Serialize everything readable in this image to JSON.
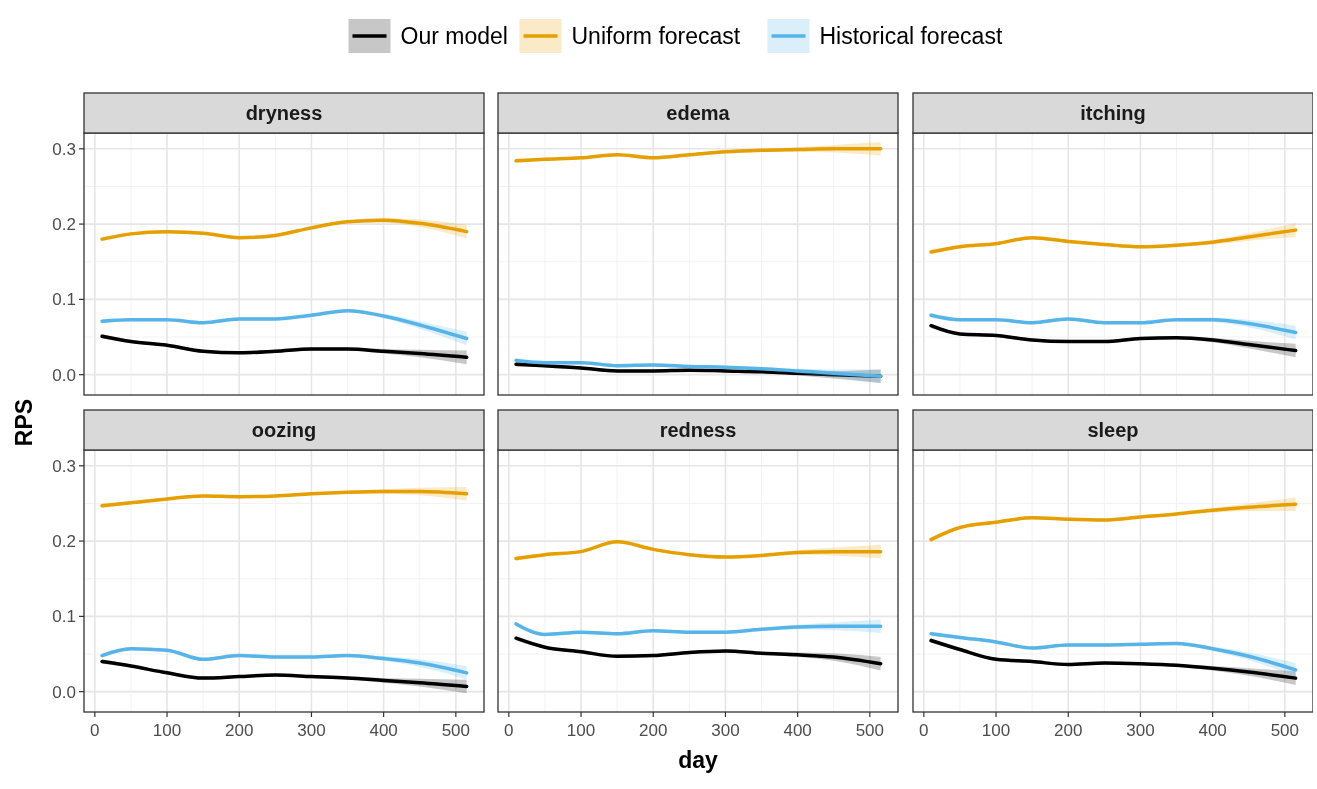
{
  "chart_data": [
    {
      "type": "line",
      "title": "dryness",
      "ylabel": "RPS",
      "legend": "top",
      "grid": true,
      "tick_labels": "y",
      "line_style": "solid",
      "x": [
        10,
        50,
        100,
        150,
        200,
        250,
        300,
        350,
        400,
        450,
        515
      ],
      "xlim": [
        -15,
        539
      ],
      "xticks": [
        0,
        100,
        200,
        300,
        400,
        500
      ],
      "ylim": [
        -0.027,
        0.321
      ],
      "yticks": [
        {
          "value": 0,
          "label": "0.0"
        },
        0.1,
        0.2,
        0.3
      ],
      "series": [
        {
          "name": "Our model",
          "color": "#000000",
          "values": [
            0.051,
            0.044,
            0.039,
            0.031,
            0.029,
            0.031,
            0.034,
            0.034,
            0.031,
            0.028,
            0.023
          ],
          "lower": [
            0.048,
            0.042,
            0.037,
            0.029,
            0.027,
            0.029,
            0.032,
            0.032,
            0.028,
            0.023,
            0.014
          ],
          "upper": [
            0.054,
            0.046,
            0.041,
            0.033,
            0.031,
            0.033,
            0.036,
            0.036,
            0.034,
            0.033,
            0.032
          ]
        },
        {
          "name": "Uniform forecast",
          "color": "#e69f00",
          "values": [
            0.18,
            0.187,
            0.19,
            0.188,
            0.182,
            0.185,
            0.195,
            0.203,
            0.205,
            0.201,
            0.19
          ],
          "lower": [
            0.177,
            0.185,
            0.188,
            0.186,
            0.18,
            0.183,
            0.193,
            0.201,
            0.202,
            0.196,
            0.181
          ],
          "upper": [
            0.183,
            0.189,
            0.192,
            0.19,
            0.184,
            0.187,
            0.197,
            0.205,
            0.208,
            0.206,
            0.199
          ]
        },
        {
          "name": "Historical forecast",
          "color": "#56b4e9",
          "values": [
            0.071,
            0.073,
            0.073,
            0.069,
            0.074,
            0.074,
            0.079,
            0.085,
            0.078,
            0.066,
            0.048
          ],
          "lower": [
            0.068,
            0.071,
            0.071,
            0.067,
            0.072,
            0.072,
            0.077,
            0.083,
            0.075,
            0.061,
            0.039
          ],
          "upper": [
            0.074,
            0.075,
            0.075,
            0.071,
            0.076,
            0.076,
            0.081,
            0.087,
            0.081,
            0.071,
            0.057
          ]
        }
      ]
    },
    {
      "type": "line",
      "title": "edema",
      "grid": true,
      "tick_labels": false,
      "line_style": "solid",
      "x": [
        10,
        50,
        100,
        150,
        200,
        250,
        300,
        350,
        400,
        450,
        515
      ],
      "xlim": [
        -15,
        539
      ],
      "xticks": [
        0,
        100,
        200,
        300,
        400,
        500
      ],
      "ylim": [
        -0.027,
        0.321
      ],
      "yticks": [
        0,
        0.1,
        0.2,
        0.3
      ],
      "series": [
        {
          "color": "#000000",
          "values": [
            0.014,
            0.012,
            0.009,
            0.005,
            0.005,
            0.006,
            0.005,
            0.004,
            0.002,
            0.0,
            -0.002
          ],
          "lower": [
            0.011,
            0.01,
            0.007,
            0.003,
            0.003,
            0.004,
            0.003,
            0.002,
            -0.001,
            -0.005,
            -0.011
          ],
          "upper": [
            0.017,
            0.014,
            0.011,
            0.007,
            0.007,
            0.008,
            0.007,
            0.006,
            0.005,
            0.005,
            0.007
          ]
        },
        {
          "color": "#e69f00",
          "values": [
            0.284,
            0.286,
            0.288,
            0.292,
            0.288,
            0.292,
            0.296,
            0.298,
            0.299,
            0.3,
            0.3
          ],
          "lower": [
            0.281,
            0.284,
            0.286,
            0.29,
            0.286,
            0.29,
            0.294,
            0.296,
            0.296,
            0.295,
            0.291
          ],
          "upper": [
            0.287,
            0.288,
            0.29,
            0.294,
            0.29,
            0.294,
            0.298,
            0.3,
            0.302,
            0.305,
            0.309
          ]
        },
        {
          "color": "#56b4e9",
          "values": [
            0.019,
            0.016,
            0.016,
            0.012,
            0.013,
            0.011,
            0.01,
            0.008,
            0.005,
            0.002,
            -0.002
          ],
          "lower": [
            0.016,
            0.014,
            0.014,
            0.01,
            0.011,
            0.009,
            0.008,
            0.006,
            0.002,
            -0.003,
            -0.011
          ],
          "upper": [
            0.022,
            0.018,
            0.018,
            0.014,
            0.015,
            0.013,
            0.012,
            0.01,
            0.008,
            0.007,
            0.007
          ]
        }
      ]
    },
    {
      "type": "line",
      "title": "itching",
      "grid": true,
      "tick_labels": false,
      "line_style": "solid",
      "x": [
        10,
        50,
        100,
        150,
        200,
        250,
        300,
        350,
        400,
        450,
        515
      ],
      "xlim": [
        -15,
        539
      ],
      "xticks": [
        0,
        100,
        200,
        300,
        400,
        500
      ],
      "ylim": [
        -0.027,
        0.321
      ],
      "yticks": [
        0,
        0.1,
        0.2,
        0.3
      ],
      "series": [
        {
          "color": "#000000",
          "values": [
            0.065,
            0.054,
            0.052,
            0.046,
            0.044,
            0.044,
            0.048,
            0.049,
            0.046,
            0.04,
            0.032
          ],
          "lower": [
            0.062,
            0.052,
            0.05,
            0.044,
            0.042,
            0.042,
            0.046,
            0.047,
            0.043,
            0.035,
            0.023
          ],
          "upper": [
            0.068,
            0.056,
            0.054,
            0.048,
            0.046,
            0.046,
            0.05,
            0.051,
            0.049,
            0.045,
            0.041
          ]
        },
        {
          "color": "#e69f00",
          "values": [
            0.163,
            0.17,
            0.174,
            0.182,
            0.177,
            0.173,
            0.17,
            0.172,
            0.176,
            0.183,
            0.192
          ],
          "lower": [
            0.16,
            0.168,
            0.172,
            0.18,
            0.175,
            0.171,
            0.168,
            0.17,
            0.173,
            0.178,
            0.183
          ],
          "upper": [
            0.166,
            0.172,
            0.176,
            0.184,
            0.179,
            0.175,
            0.172,
            0.174,
            0.179,
            0.188,
            0.201
          ]
        },
        {
          "color": "#56b4e9",
          "values": [
            0.079,
            0.073,
            0.073,
            0.069,
            0.074,
            0.069,
            0.069,
            0.073,
            0.073,
            0.068,
            0.056
          ],
          "lower": [
            0.076,
            0.071,
            0.071,
            0.067,
            0.072,
            0.067,
            0.067,
            0.071,
            0.07,
            0.063,
            0.047
          ],
          "upper": [
            0.082,
            0.075,
            0.075,
            0.071,
            0.076,
            0.071,
            0.071,
            0.075,
            0.076,
            0.073,
            0.065
          ]
        }
      ]
    },
    {
      "type": "line",
      "title": "oozing",
      "grid": true,
      "line_style": "solid",
      "x": [
        10,
        50,
        100,
        150,
        200,
        250,
        300,
        350,
        400,
        450,
        515
      ],
      "xlim": [
        -15,
        539
      ],
      "xticks": [
        0,
        100,
        200,
        300,
        400,
        500
      ],
      "ylim": [
        -0.027,
        0.321
      ],
      "yticks": [
        {
          "value": 0,
          "label": "0.0"
        },
        0.1,
        0.2,
        0.3
      ],
      "series": [
        {
          "color": "#000000",
          "values": [
            0.04,
            0.034,
            0.025,
            0.018,
            0.02,
            0.022,
            0.02,
            0.018,
            0.015,
            0.012,
            0.007
          ],
          "lower": [
            0.037,
            0.032,
            0.023,
            0.016,
            0.018,
            0.02,
            0.018,
            0.016,
            0.012,
            0.007,
            -0.002
          ],
          "upper": [
            0.043,
            0.036,
            0.027,
            0.02,
            0.022,
            0.024,
            0.022,
            0.02,
            0.018,
            0.017,
            0.016
          ]
        },
        {
          "color": "#e69f00",
          "values": [
            0.247,
            0.251,
            0.256,
            0.26,
            0.259,
            0.26,
            0.263,
            0.265,
            0.266,
            0.266,
            0.263
          ],
          "lower": [
            0.244,
            0.249,
            0.254,
            0.258,
            0.257,
            0.258,
            0.261,
            0.263,
            0.263,
            0.261,
            0.254
          ],
          "upper": [
            0.25,
            0.253,
            0.258,
            0.262,
            0.261,
            0.262,
            0.265,
            0.267,
            0.269,
            0.271,
            0.272
          ]
        },
        {
          "color": "#56b4e9",
          "values": [
            0.048,
            0.057,
            0.055,
            0.043,
            0.048,
            0.046,
            0.046,
            0.048,
            0.044,
            0.038,
            0.025
          ],
          "lower": [
            0.045,
            0.055,
            0.053,
            0.041,
            0.046,
            0.044,
            0.044,
            0.046,
            0.041,
            0.033,
            0.016
          ],
          "upper": [
            0.051,
            0.059,
            0.057,
            0.045,
            0.05,
            0.048,
            0.048,
            0.05,
            0.047,
            0.043,
            0.034
          ]
        }
      ]
    },
    {
      "type": "line",
      "title": "redness",
      "xlabel": "day",
      "grid": true,
      "tick_labels": "x",
      "line_style": "solid",
      "x": [
        10,
        50,
        100,
        150,
        200,
        250,
        300,
        350,
        400,
        450,
        515
      ],
      "xlim": [
        -15,
        539
      ],
      "xticks": [
        0,
        100,
        200,
        300,
        400,
        500
      ],
      "ylim": [
        -0.027,
        0.321
      ],
      "yticks": [
        0,
        0.1,
        0.2,
        0.3
      ],
      "series": [
        {
          "color": "#000000",
          "values": [
            0.071,
            0.059,
            0.053,
            0.047,
            0.048,
            0.052,
            0.054,
            0.051,
            0.049,
            0.046,
            0.037
          ],
          "lower": [
            0.068,
            0.057,
            0.051,
            0.045,
            0.046,
            0.05,
            0.052,
            0.049,
            0.046,
            0.041,
            0.028
          ],
          "upper": [
            0.074,
            0.061,
            0.055,
            0.049,
            0.05,
            0.054,
            0.056,
            0.053,
            0.052,
            0.051,
            0.046
          ]
        },
        {
          "color": "#e69f00",
          "values": [
            0.177,
            0.182,
            0.186,
            0.199,
            0.189,
            0.182,
            0.179,
            0.181,
            0.185,
            0.186,
            0.186
          ],
          "lower": [
            0.174,
            0.18,
            0.184,
            0.197,
            0.187,
            0.18,
            0.177,
            0.179,
            0.182,
            0.181,
            0.177
          ],
          "upper": [
            0.18,
            0.184,
            0.188,
            0.201,
            0.191,
            0.184,
            0.181,
            0.183,
            0.188,
            0.191,
            0.195
          ]
        },
        {
          "color": "#56b4e9",
          "values": [
            0.09,
            0.076,
            0.079,
            0.077,
            0.081,
            0.079,
            0.079,
            0.083,
            0.086,
            0.087,
            0.087
          ],
          "lower": [
            0.087,
            0.074,
            0.077,
            0.075,
            0.079,
            0.077,
            0.077,
            0.081,
            0.083,
            0.082,
            0.078
          ],
          "upper": [
            0.093,
            0.078,
            0.081,
            0.079,
            0.083,
            0.081,
            0.081,
            0.085,
            0.089,
            0.092,
            0.096
          ]
        }
      ]
    },
    {
      "type": "line",
      "title": "sleep",
      "grid": true,
      "tick_labels": "x",
      "line_style": "solid",
      "x": [
        10,
        50,
        100,
        150,
        200,
        250,
        300,
        350,
        400,
        450,
        515
      ],
      "xlim": [
        -15,
        539
      ],
      "xticks": [
        0,
        100,
        200,
        300,
        400,
        500
      ],
      "ylim": [
        -0.027,
        0.321
      ],
      "yticks": [
        0,
        0.1,
        0.2,
        0.3
      ],
      "series": [
        {
          "color": "#000000",
          "values": [
            0.068,
            0.056,
            0.043,
            0.04,
            0.036,
            0.038,
            0.037,
            0.035,
            0.031,
            0.026,
            0.018
          ],
          "lower": [
            0.065,
            0.054,
            0.041,
            0.038,
            0.034,
            0.036,
            0.035,
            0.033,
            0.028,
            0.021,
            0.009
          ],
          "upper": [
            0.071,
            0.058,
            0.045,
            0.042,
            0.038,
            0.04,
            0.039,
            0.037,
            0.034,
            0.031,
            0.027
          ]
        },
        {
          "color": "#e69f00",
          "values": [
            0.202,
            0.218,
            0.225,
            0.231,
            0.229,
            0.228,
            0.232,
            0.236,
            0.241,
            0.245,
            0.249
          ],
          "lower": [
            0.199,
            0.216,
            0.223,
            0.229,
            0.227,
            0.226,
            0.23,
            0.234,
            0.238,
            0.24,
            0.24
          ],
          "upper": [
            0.205,
            0.22,
            0.227,
            0.233,
            0.231,
            0.23,
            0.234,
            0.238,
            0.244,
            0.25,
            0.258
          ]
        },
        {
          "color": "#56b4e9",
          "values": [
            0.077,
            0.072,
            0.066,
            0.058,
            0.062,
            0.062,
            0.063,
            0.064,
            0.057,
            0.047,
            0.029
          ],
          "lower": [
            0.074,
            0.07,
            0.064,
            0.056,
            0.06,
            0.06,
            0.061,
            0.062,
            0.054,
            0.042,
            0.02
          ],
          "upper": [
            0.08,
            0.074,
            0.068,
            0.06,
            0.064,
            0.064,
            0.065,
            0.066,
            0.06,
            0.052,
            0.038
          ]
        }
      ]
    }
  ]
}
